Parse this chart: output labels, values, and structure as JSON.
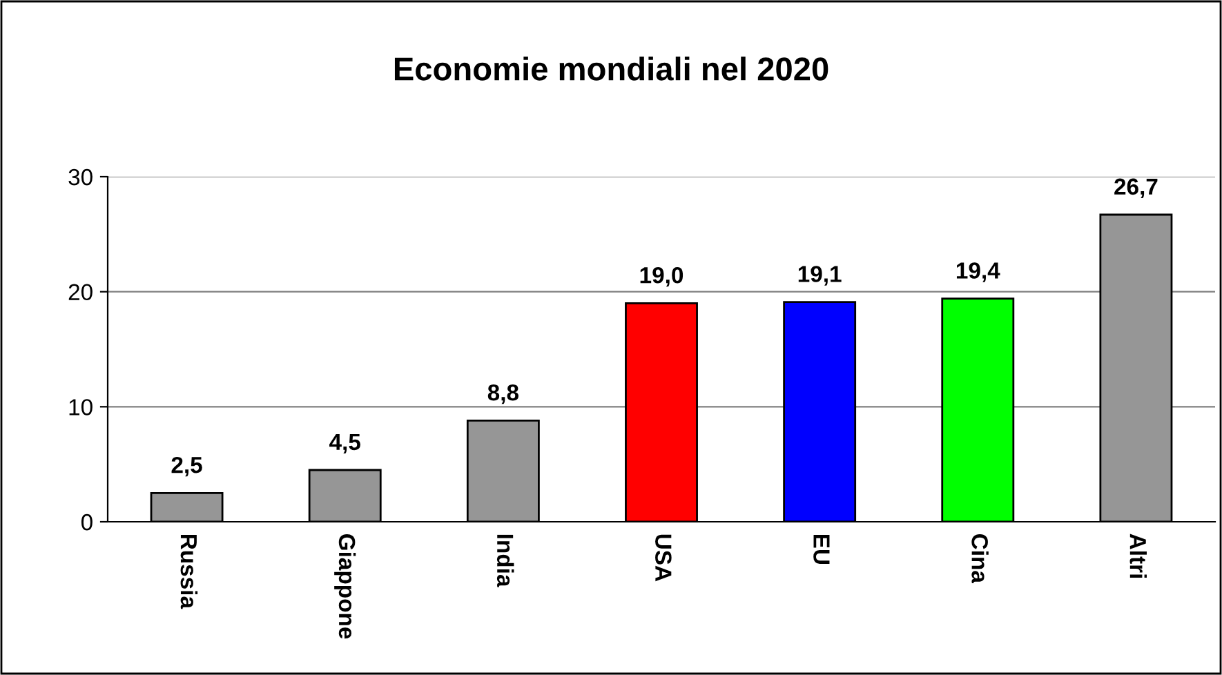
{
  "chart_data": {
    "type": "bar",
    "title": "Economie mondiali nel 2020",
    "categories": [
      "Russia",
      "Giappone",
      "India",
      "USA",
      "EU",
      "Cina",
      "Altri"
    ],
    "values": [
      2.5,
      4.5,
      8.8,
      19.0,
      19.1,
      19.4,
      26.7
    ],
    "colors": [
      "#969696",
      "#969696",
      "#969696",
      "#ff0000",
      "#0000ff",
      "#00ff00",
      "#969696"
    ],
    "value_labels": [
      "2,5",
      "4,5",
      "8,8",
      "19,0",
      "19,1",
      "19,4",
      "26,7"
    ],
    "ylim": [
      0,
      30
    ],
    "yticks": [
      0,
      10,
      20,
      30
    ],
    "grid": "y"
  }
}
